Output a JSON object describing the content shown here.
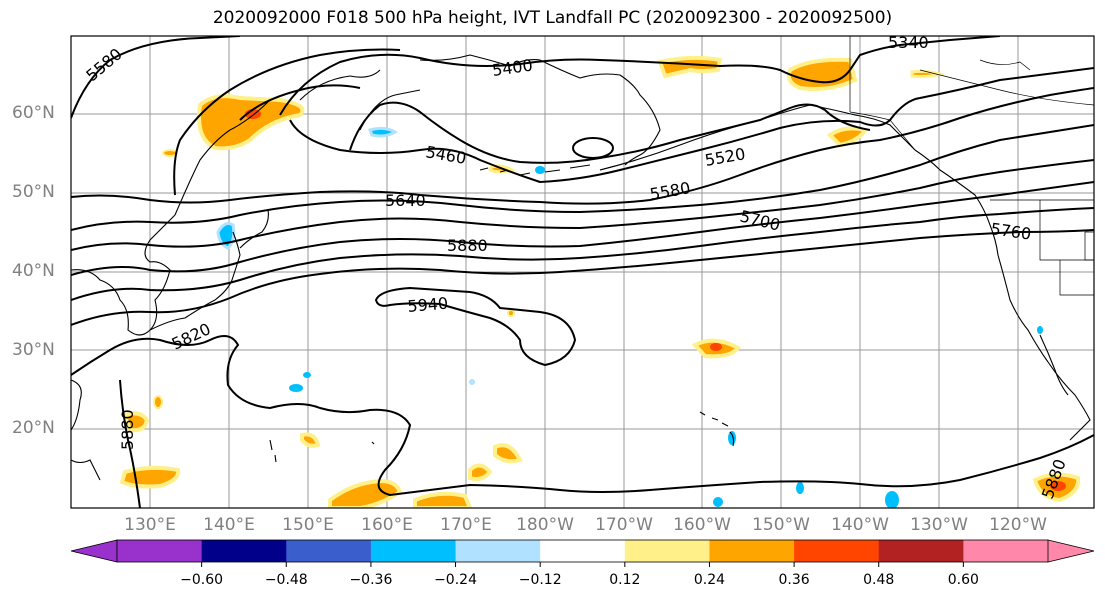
{
  "title": "2020092000 F018 500 hPa height, IVT Landfall PC (2020092300 - 2020092500)",
  "lat_labels": [
    "60°N",
    "50°N",
    "40°N",
    "30°N",
    "20°N"
  ],
  "lon_labels": [
    "130°E",
    "140°E",
    "150°E",
    "160°E",
    "170°E",
    "180°W",
    "170°W",
    "160°W",
    "150°W",
    "140°W",
    "130°W",
    "120°W"
  ],
  "contour_labels": [
    "5580",
    "5400",
    "5340",
    "5460",
    "5520",
    "5580",
    "5640",
    "5700",
    "5760",
    "5880",
    "5940",
    "5820",
    "5880",
    "5880"
  ],
  "colorbar": {
    "ticks": [
      "−0.60",
      "−0.48",
      "−0.36",
      "−0.24",
      "−0.12",
      "0.12",
      "0.24",
      "0.36",
      "0.48",
      "0.60"
    ],
    "colors": [
      "#9932cc",
      "#00008b",
      "#3a5fcd",
      "#00bfff",
      "#b0e2ff",
      "#ffffff",
      "#fff08a",
      "#ffa500",
      "#ff4500",
      "#b22222",
      "#ff88aa"
    ]
  }
}
